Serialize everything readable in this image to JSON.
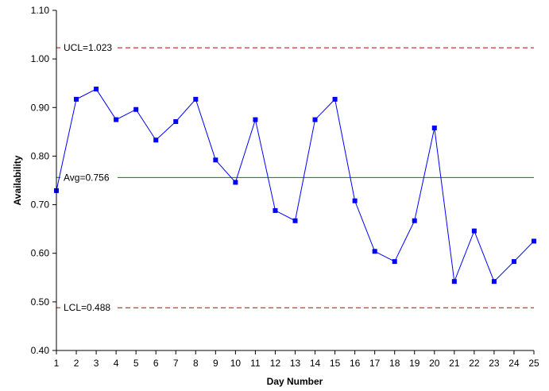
{
  "chart_data": {
    "type": "line",
    "title": "",
    "xlabel": "Day Number",
    "ylabel": "Availability",
    "x": [
      1,
      2,
      3,
      4,
      5,
      6,
      7,
      8,
      9,
      10,
      11,
      12,
      13,
      14,
      15,
      16,
      17,
      18,
      19,
      20,
      21,
      22,
      23,
      24,
      25
    ],
    "series": [
      {
        "values": [
          0.729,
          0.917,
          0.938,
          0.875,
          0.896,
          0.833,
          0.871,
          0.917,
          0.792,
          0.746,
          0.875,
          0.688,
          0.667,
          0.875,
          0.917,
          0.708,
          0.604,
          0.583,
          0.667,
          0.858,
          0.542,
          0.646,
          0.542,
          0.583,
          0.625
        ],
        "color": "#0000ff"
      }
    ],
    "xlim": [
      1,
      25
    ],
    "ylim": [
      0.4,
      1.1
    ],
    "yticks": [
      "0.40",
      "0.50",
      "0.60",
      "0.70",
      "0.80",
      "0.90",
      "1.00",
      "1.10"
    ],
    "xticks": [
      "1",
      "2",
      "3",
      "4",
      "5",
      "6",
      "7",
      "8",
      "9",
      "10",
      "11",
      "12",
      "13",
      "14",
      "15",
      "16",
      "17",
      "18",
      "19",
      "20",
      "21",
      "22",
      "23",
      "24",
      "25"
    ],
    "reference_lines": [
      {
        "label": "UCL=1.023",
        "value": 1.023,
        "color": "#c00000",
        "style": "dashed"
      },
      {
        "label": "Avg=0.756",
        "value": 0.756,
        "color": "#008000",
        "style": "solid"
      },
      {
        "label": "LCL=0.488",
        "value": 0.488,
        "color": "#c00000",
        "style": "dashed"
      }
    ],
    "grid": false,
    "legend": "none"
  }
}
